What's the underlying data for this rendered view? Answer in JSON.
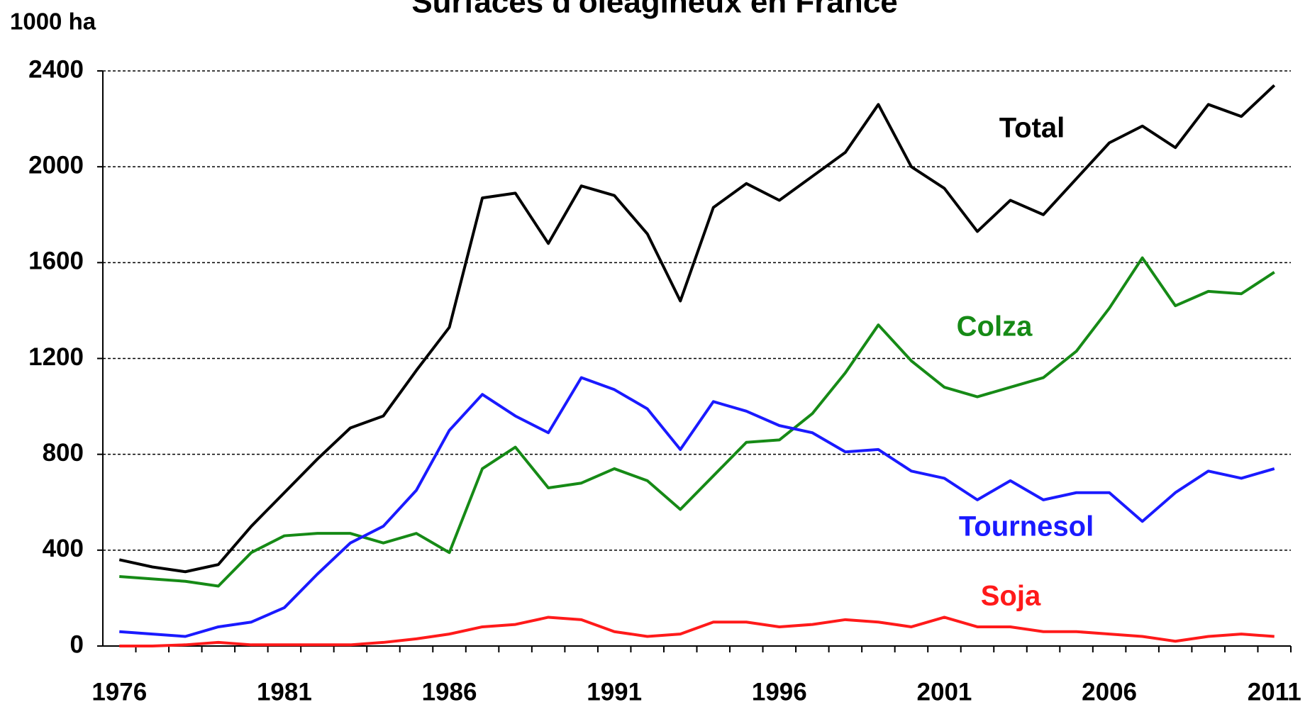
{
  "chart_data": {
    "type": "line",
    "title": "Surfaces d'oléagineux en France",
    "ylabel": "1000 ha",
    "x": [
      1976,
      1977,
      1978,
      1979,
      1980,
      1981,
      1982,
      1983,
      1984,
      1985,
      1986,
      1987,
      1988,
      1989,
      1990,
      1991,
      1992,
      1993,
      1994,
      1995,
      1996,
      1997,
      1998,
      1999,
      2000,
      2001,
      2002,
      2003,
      2004,
      2005,
      2006,
      2007,
      2008,
      2009,
      2010,
      2011
    ],
    "series": [
      {
        "name": "Total",
        "color": "#000000",
        "values": [
          360,
          330,
          310,
          340,
          500,
          640,
          780,
          910,
          960,
          1150,
          1330,
          1870,
          1890,
          1680,
          1920,
          1880,
          1720,
          1440,
          1830,
          1930,
          1860,
          1960,
          2060,
          2260,
          2000,
          1910,
          1730,
          1860,
          1800,
          1950,
          2100,
          2170,
          2080,
          2260,
          2210,
          2340
        ]
      },
      {
        "name": "Colza",
        "color": "#168a16",
        "values": [
          290,
          280,
          270,
          250,
          390,
          460,
          470,
          470,
          430,
          470,
          390,
          740,
          830,
          660,
          680,
          740,
          690,
          570,
          710,
          850,
          860,
          970,
          1140,
          1340,
          1190,
          1080,
          1040,
          1080,
          1120,
          1230,
          1410,
          1620,
          1420,
          1480,
          1470,
          1560
        ]
      },
      {
        "name": "Tournesol",
        "color": "#1a1aff",
        "values": [
          60,
          50,
          40,
          80,
          100,
          160,
          300,
          430,
          500,
          650,
          900,
          1050,
          960,
          890,
          1120,
          1070,
          990,
          820,
          1020,
          980,
          920,
          890,
          810,
          820,
          730,
          700,
          610,
          690,
          610,
          640,
          640,
          520,
          640,
          730,
          700,
          740
        ]
      },
      {
        "name": "Soja",
        "color": "#ff1a1a",
        "values": [
          0,
          0,
          5,
          15,
          5,
          5,
          5,
          5,
          15,
          30,
          50,
          80,
          90,
          120,
          110,
          60,
          40,
          50,
          100,
          100,
          80,
          90,
          110,
          100,
          80,
          120,
          80,
          80,
          60,
          60,
          50,
          40,
          20,
          40,
          50,
          40
        ]
      }
    ],
    "xlim": [
      1975.5,
      2011.5
    ],
    "xticks": [
      1976,
      1981,
      1986,
      1991,
      1996,
      2001,
      2006,
      2011
    ],
    "ylim": [
      0,
      2400
    ],
    "yticks": [
      0,
      400,
      800,
      1200,
      1600,
      2000,
      2400
    ],
    "grid": true
  }
}
